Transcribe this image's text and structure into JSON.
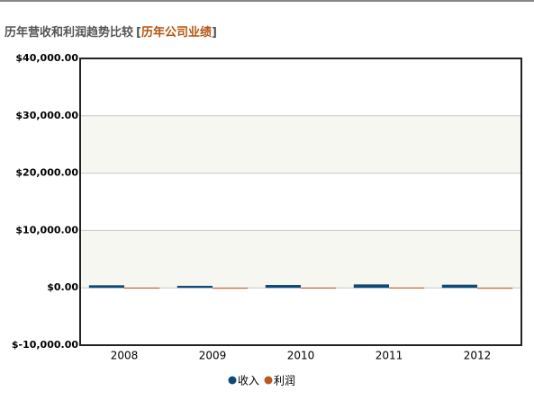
{
  "chart_data": {
    "type": "bar",
    "title": "历年营收和利润趋势比较",
    "link_open": "[",
    "link_text": "历年公司业绩",
    "link_close": "]",
    "categories": [
      "2008",
      "2009",
      "2010",
      "2011",
      "2012"
    ],
    "series": [
      {
        "name": "收入",
        "color": "#0d4a78",
        "values": [
          450,
          350,
          500,
          600,
          550
        ]
      },
      {
        "name": "利润",
        "color": "#c0561b",
        "values": [
          30,
          -10,
          40,
          50,
          -10
        ]
      }
    ],
    "ylim": [
      -10000,
      40000
    ],
    "yticks": [
      {
        "value": -10000,
        "label": "$-10,000.00"
      },
      {
        "value": 0,
        "label": "$0.00"
      },
      {
        "value": 10000,
        "label": "$10,000.00"
      },
      {
        "value": 20000,
        "label": "$20,000.00"
      },
      {
        "value": 30000,
        "label": "$30,000.00"
      },
      {
        "value": 40000,
        "label": "$40,000.00"
      }
    ],
    "grid": true
  }
}
